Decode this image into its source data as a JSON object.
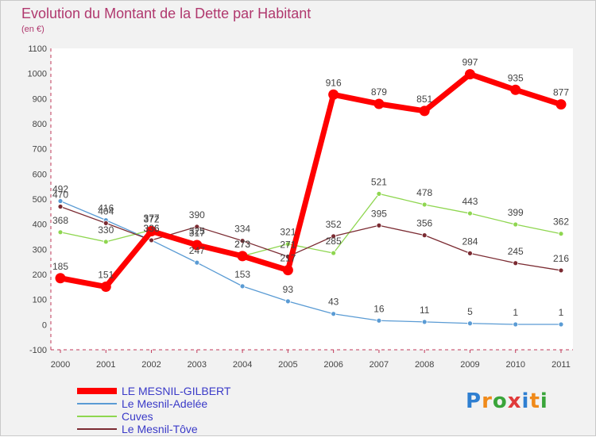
{
  "chart_data": {
    "type": "line",
    "title": "Evolution du Montant de la Dette par Habitant",
    "unit_label": "(en €)",
    "x": [
      "2000",
      "2001",
      "2002",
      "2003",
      "2004",
      "2005",
      "2006",
      "2007",
      "2008",
      "2009",
      "2010",
      "2011"
    ],
    "ylim": [
      -100,
      1100
    ],
    "yticks": [
      -100,
      0,
      100,
      200,
      300,
      400,
      500,
      600,
      700,
      800,
      900,
      1000,
      1100
    ],
    "grid": false,
    "series": [
      {
        "name": "LE MESNIL-GILBERT",
        "color": "#ff0000",
        "values": [
          185,
          151,
          372,
          317,
          273,
          217,
          916,
          879,
          851,
          997,
          935,
          877
        ],
        "labels": [
          "185",
          "151",
          "372",
          "317",
          "273",
          "217",
          "916",
          "879",
          "851",
          "997",
          "935",
          "877"
        ]
      },
      {
        "name": "Le Mesnil-Adelée",
        "color": "#5a9bd4",
        "values": [
          492,
          416,
          336,
          247,
          153,
          93,
          43,
          16,
          11,
          5,
          1,
          1
        ],
        "labels": [
          "492",
          "416",
          "336",
          "247",
          "153",
          "93",
          "43",
          "16",
          "11",
          "5",
          "1",
          "1"
        ]
      },
      {
        "name": "Cuves",
        "color": "#8ed64f",
        "values": [
          368,
          330,
          377,
          325,
          273,
          321,
          285,
          521,
          478,
          443,
          399,
          362
        ],
        "labels": [
          "368",
          "330",
          "377",
          "325",
          "273",
          "321",
          "285",
          "521",
          "478",
          "443",
          "399",
          "362"
        ]
      },
      {
        "name": "Le Mesnil-Tôve",
        "color": "#7b2b32",
        "values": [
          470,
          404,
          336,
          390,
          334,
          271,
          352,
          395,
          356,
          284,
          245,
          216
        ],
        "labels": [
          "470",
          "404",
          "336",
          "390",
          "334",
          "271",
          "352",
          "395",
          "356",
          "284",
          "245",
          "216"
        ]
      }
    ],
    "legend": [
      "LE MESNIL-GILBERT",
      "Le Mesnil-Adelée",
      "Cuves",
      "Le Mesnil-Tôve"
    ],
    "legend_placement": "bottom-left"
  },
  "logo": {
    "letters": [
      "P",
      "r",
      "o",
      "x",
      "i",
      "t",
      "i"
    ],
    "colors": [
      "#2f7fd1",
      "#f08a1a",
      "#3aa53a",
      "#e03a3a",
      "#2f7fd1",
      "#f08a1a",
      "#3aa53a"
    ]
  }
}
